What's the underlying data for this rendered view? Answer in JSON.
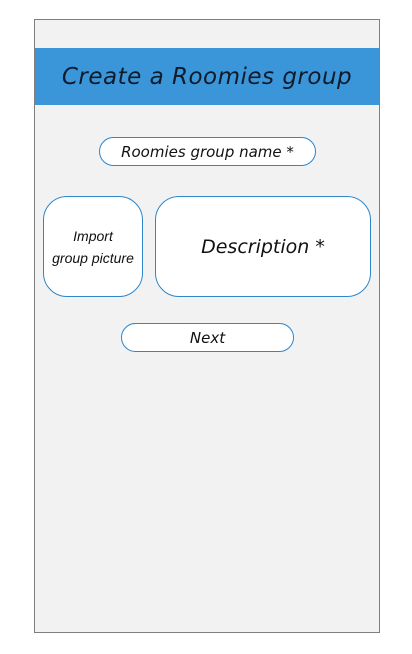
{
  "header": {
    "title": "Create a Roomies group"
  },
  "form": {
    "name_placeholder": "Roomies group name *",
    "import_line1": "Import",
    "import_line2": "group picture",
    "description_placeholder": "Description *",
    "next_label": "Next"
  },
  "colors": {
    "header_bg": "#3a96d9",
    "screen_bg": "#f2f2f2",
    "field_border": "#2f86c9"
  }
}
